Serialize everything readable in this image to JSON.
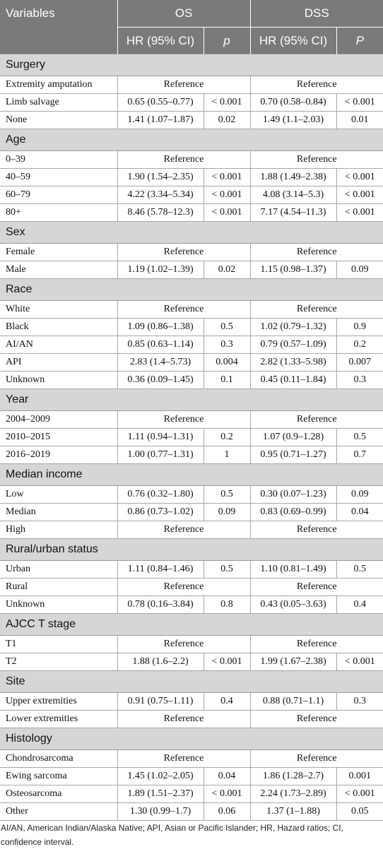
{
  "header": {
    "variables": "Variables",
    "os": "OS",
    "dss": "DSS",
    "hr_os": "HR (95% CI)",
    "p_os": "p",
    "hr_dss": "HR (95% CI)",
    "p_dss": "P"
  },
  "sections": [
    {
      "title": "Surgery",
      "rows": [
        {
          "label": "Extremity amputation",
          "ref": "Reference"
        },
        {
          "label": "Limb salvage",
          "os_hr": "0.65 (0.55–0.77)",
          "os_p": "< 0.001",
          "dss_hr": "0.70 (0.58–0.84)",
          "dss_p": "< 0.001"
        },
        {
          "label": "None",
          "os_hr": "1.41 (1.07–1.87)",
          "os_p": "0.02",
          "dss_hr": "1.49 (1.1–2.03)",
          "dss_p": "0.01"
        }
      ]
    },
    {
      "title": "Age",
      "rows": [
        {
          "label": "0–39",
          "ref": "Reference"
        },
        {
          "label": "40–59",
          "os_hr": "1.90 (1.54–2.35)",
          "os_p": "< 0.001",
          "dss_hr": "1.88 (1.49–2.38)",
          "dss_p": "< 0.001"
        },
        {
          "label": "60–79",
          "os_hr": "4.22 (3.34–5.34)",
          "os_p": "< 0.001",
          "dss_hr": "4.08 (3.14–5.3)",
          "dss_p": "< 0.001"
        },
        {
          "label": "80+",
          "os_hr": "8.46 (5.78–12.3)",
          "os_p": "< 0.001",
          "dss_hr": "7.17 (4.54–11.3)",
          "dss_p": "< 0.001"
        }
      ]
    },
    {
      "title": "Sex",
      "rows": [
        {
          "label": "Female",
          "ref": "Reference"
        },
        {
          "label": "Male",
          "os_hr": "1.19 (1.02–1.39)",
          "os_p": "0.02",
          "dss_hr": "1.15 (0.98–1.37)",
          "dss_p": "0.09"
        }
      ]
    },
    {
      "title": "Race",
      "rows": [
        {
          "label": "White",
          "ref": "Reference"
        },
        {
          "label": "Black",
          "os_hr": "1.09 (0.86–1.38)",
          "os_p": "0.5",
          "dss_hr": "1.02 (0.79–1.32)",
          "dss_p": "0.9"
        },
        {
          "label": "AI/AN",
          "os_hr": "0.85 (0.63–1.14)",
          "os_p": "0.3",
          "dss_hr": "0.79 (0.57–1.09)",
          "dss_p": "0.2"
        },
        {
          "label": "API",
          "os_hr": "2.83 (1.4–5.73)",
          "os_p": "0.004",
          "dss_hr": "2.82 (1.33–5.98)",
          "dss_p": "0.007"
        },
        {
          "label": "Unknown",
          "os_hr": "0.36 (0.09–1.45)",
          "os_p": "0.1",
          "dss_hr": "0.45 (0.11–1.84)",
          "dss_p": "0.3"
        }
      ]
    },
    {
      "title": "Year",
      "rows": [
        {
          "label": "2004–2009",
          "ref": "Reference"
        },
        {
          "label": "2010–2015",
          "os_hr": "1.11 (0.94–1.31)",
          "os_p": "0.2",
          "dss_hr": "1.07 (0.9–1.28)",
          "dss_p": "0.5"
        },
        {
          "label": "2016–2019",
          "os_hr": "1.00 (0.77–1.31)",
          "os_p": "1",
          "dss_hr": "0.95 (0.71–1.27)",
          "dss_p": "0.7"
        }
      ]
    },
    {
      "title": "Median income",
      "rows": [
        {
          "label": "Low",
          "os_hr": "0.76 (0.32–1.80)",
          "os_p": "0.5",
          "dss_hr": "0.30 (0.07–1.23)",
          "dss_p": "0.09"
        },
        {
          "label": "Median",
          "os_hr": "0.86 (0.73–1.02)",
          "os_p": "0.09",
          "dss_hr": "0.83 (0.69–0.99)",
          "dss_p": "0.04"
        },
        {
          "label": "High",
          "ref": "Reference"
        }
      ]
    },
    {
      "title": "Rural/urban status",
      "rows": [
        {
          "label": "Urban",
          "os_hr": "1.11 (0.84–1.46)",
          "os_p": "0.5",
          "dss_hr": "1.10 (0.81–1.49)",
          "dss_p": "0.5"
        },
        {
          "label": "Rural",
          "ref": "Reference"
        },
        {
          "label": "Unknown",
          "os_hr": "0.78 (0.16–3.84)",
          "os_p": "0.8",
          "dss_hr": "0.43 (0.05–3.63)",
          "dss_p": "0.4"
        }
      ]
    },
    {
      "title": "AJCC T stage",
      "rows": [
        {
          "label": "T1",
          "ref": "Reference"
        },
        {
          "label": "T2",
          "os_hr": "1.88 (1.6–2.2)",
          "os_p": "< 0.001",
          "dss_hr": "1.99 (1.67–2.38)",
          "dss_p": "< 0.001"
        }
      ]
    },
    {
      "title": "Site",
      "rows": [
        {
          "label": "Upper extremities",
          "os_hr": "0.91 (0.75–1.11)",
          "os_p": "0.4",
          "dss_hr": "0.88 (0.71–1.1)",
          "dss_p": "0.3"
        },
        {
          "label": "Lower extremities",
          "ref": "Reference"
        }
      ]
    },
    {
      "title": "Histology",
      "rows": [
        {
          "label": "Chondrosarcoma",
          "ref": "Reference"
        },
        {
          "label": "Ewing sarcoma",
          "os_hr": "1.45 (1.02–2.05)",
          "os_p": "0.04",
          "dss_hr": "1.86 (1.28–2.7)",
          "dss_p": "0.001"
        },
        {
          "label": "Osteosarcoma",
          "os_hr": "1.89 (1.51–2.37)",
          "os_p": "< 0.001",
          "dss_hr": "2.24 (1.73–2.89)",
          "dss_p": "< 0.001"
        },
        {
          "label": "Other",
          "os_hr": "1.30 (0.99–1.7)",
          "os_p": "0.06",
          "dss_hr": "1.37 (1–1.88)",
          "dss_p": "0.05"
        }
      ]
    }
  ],
  "footnote": "AI/AN, American Indian/Alaska Native; API, Asian or Pacific Islander; HR, Hazard ratios; CI, confidence interval."
}
